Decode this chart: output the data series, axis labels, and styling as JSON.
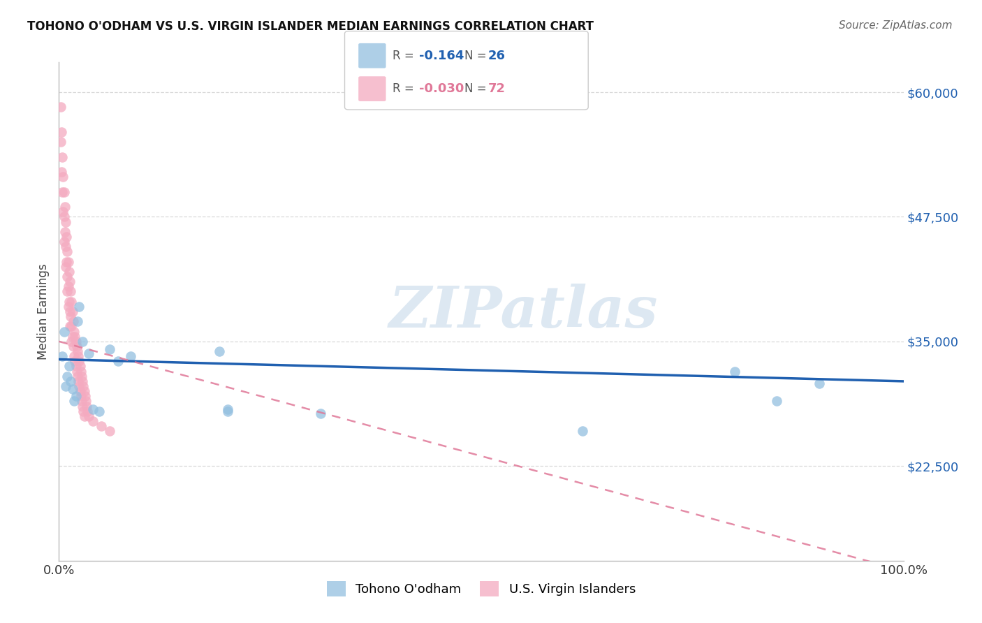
{
  "title": "TOHONO O'ODHAM VS U.S. VIRGIN ISLANDER MEDIAN EARNINGS CORRELATION CHART",
  "source": "Source: ZipAtlas.com",
  "ylabel": "Median Earnings",
  "xlim": [
    0,
    1.0
  ],
  "ylim": [
    13000,
    63000
  ],
  "yticks": [
    22500,
    35000,
    47500,
    60000
  ],
  "ytick_labels": [
    "$22,500",
    "$35,000",
    "$47,500",
    "$60,000"
  ],
  "xtick_labels": [
    "0.0%",
    "100.0%"
  ],
  "background_color": "#ffffff",
  "grid_color": "#d8d8d8",
  "watermark": "ZIPatlas",
  "blue_scatter_color": "#93bfe0",
  "pink_scatter_color": "#f4aac0",
  "blue_line_color": "#2060b0",
  "pink_line_color": "#e07898",
  "legend_R_blue": "-0.164",
  "legend_N_blue": "26",
  "legend_R_pink": "-0.030",
  "legend_N_pink": "72",
  "legend_label_blue": "Tohono O'odham",
  "legend_label_pink": "U.S. Virgin Islanders",
  "blue_line_x0": 0.0,
  "blue_line_y0": 33200,
  "blue_line_x1": 1.0,
  "blue_line_y1": 31000,
  "pink_line_x0": 0.0,
  "pink_line_y0": 35000,
  "pink_line_x1": 1.0,
  "pink_line_y1": 12000,
  "tohono_x": [
    0.004,
    0.006,
    0.008,
    0.01,
    0.012,
    0.014,
    0.016,
    0.018,
    0.02,
    0.022,
    0.024,
    0.028,
    0.035,
    0.04,
    0.048,
    0.06,
    0.07,
    0.085,
    0.19,
    0.2,
    0.2,
    0.31,
    0.62,
    0.8,
    0.85,
    0.9
  ],
  "tohono_y": [
    33500,
    36000,
    30500,
    31500,
    32500,
    31000,
    30200,
    29000,
    29500,
    37000,
    38500,
    35000,
    33800,
    28200,
    28000,
    34200,
    33000,
    33500,
    34000,
    28000,
    28200,
    27800,
    26000,
    32000,
    29000,
    30800
  ],
  "virgin_x": [
    0.002,
    0.002,
    0.003,
    0.003,
    0.004,
    0.004,
    0.005,
    0.005,
    0.006,
    0.006,
    0.006,
    0.007,
    0.007,
    0.008,
    0.008,
    0.008,
    0.009,
    0.009,
    0.01,
    0.01,
    0.01,
    0.011,
    0.011,
    0.011,
    0.012,
    0.012,
    0.013,
    0.013,
    0.013,
    0.014,
    0.014,
    0.015,
    0.015,
    0.015,
    0.016,
    0.016,
    0.017,
    0.017,
    0.018,
    0.018,
    0.019,
    0.019,
    0.02,
    0.02,
    0.021,
    0.021,
    0.022,
    0.022,
    0.023,
    0.023,
    0.024,
    0.024,
    0.025,
    0.025,
    0.026,
    0.026,
    0.027,
    0.027,
    0.028,
    0.028,
    0.029,
    0.029,
    0.03,
    0.03,
    0.031,
    0.032,
    0.033,
    0.034,
    0.035,
    0.04,
    0.05,
    0.06
  ],
  "virgin_y": [
    58500,
    55000,
    56000,
    52000,
    53500,
    50000,
    51500,
    48000,
    50000,
    47500,
    45000,
    48500,
    46000,
    47000,
    44500,
    42500,
    45500,
    43000,
    44000,
    41500,
    40000,
    43000,
    40500,
    38500,
    42000,
    39000,
    41000,
    38000,
    36500,
    40000,
    37500,
    39000,
    36500,
    35000,
    38000,
    35500,
    37000,
    34500,
    36000,
    33500,
    35500,
    33000,
    35000,
    32500,
    34500,
    32000,
    34000,
    31500,
    33500,
    31000,
    33000,
    30500,
    32500,
    30000,
    32000,
    29500,
    31500,
    29000,
    31000,
    28500,
    30500,
    28000,
    30000,
    27500,
    29500,
    29000,
    28500,
    28000,
    27500,
    27000,
    26500,
    26000
  ]
}
